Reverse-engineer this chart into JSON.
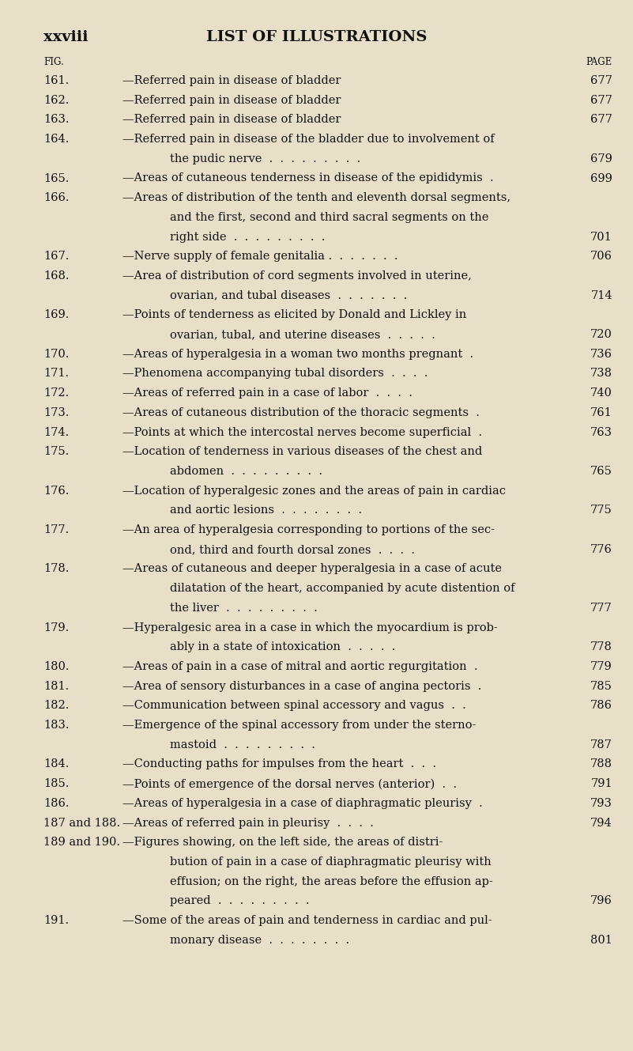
{
  "background_color": "#e8dfc8",
  "page_width": 8.01,
  "page_height": 13.29,
  "header_left": "xxviii",
  "header_center": "LIST OF ILLUSTRATIONS",
  "col_fig_label": "FIG.",
  "col_page_label": "PAGE",
  "entries": [
    {
      "fig": "161.",
      "text": "—Referred pain in disease of bladder",
      "trail": " .  .  .  .  . ",
      "page": "677",
      "indent": false
    },
    {
      "fig": "162.",
      "text": "—Referred pain in disease of bladder",
      "trail": " .  .  .  .  . ",
      "page": "677",
      "indent": false
    },
    {
      "fig": "163.",
      "text": "—Referred pain in disease of bladder",
      "trail": " .  .  .  .  . ",
      "page": "677",
      "indent": false
    },
    {
      "fig": "164.",
      "text": "—Referred pain in disease of the bladder due to involvement of",
      "trail": null,
      "page": null,
      "indent": false
    },
    {
      "fig": "",
      "text": "the pudic nerve  .  .  .  .  .  .  .  .  . ",
      "trail": null,
      "page": "679",
      "indent": true
    },
    {
      "fig": "165.",
      "text": "—Areas of cutaneous tenderness in disease of the epididymis  . ",
      "trail": null,
      "page": "699",
      "indent": false
    },
    {
      "fig": "166.",
      "text": "—Areas of distribution of the tenth and eleventh dorsal segments,",
      "trail": null,
      "page": null,
      "indent": false
    },
    {
      "fig": "",
      "text": "and the first, second and third sacral segments on the",
      "trail": null,
      "page": null,
      "indent": true
    },
    {
      "fig": "",
      "text": "right side  .  .  .  .  .  .  .  .  . ",
      "trail": null,
      "page": "701",
      "indent": true
    },
    {
      "fig": "167.",
      "text": "—Nerve supply of female genitalia .  .  .  .  .  .  . ",
      "trail": null,
      "page": "706",
      "indent": false
    },
    {
      "fig": "168.",
      "text": "—Area of distribution of cord segments involved in uterine,",
      "trail": null,
      "page": null,
      "indent": false
    },
    {
      "fig": "",
      "text": "ovarian, and tubal diseases  .  .  .  .  .  .  . ",
      "trail": null,
      "page": "714",
      "indent": true
    },
    {
      "fig": "169.",
      "text": "—Points of tenderness as elicited by Donald and Lickley in",
      "trail": null,
      "page": null,
      "indent": false
    },
    {
      "fig": "",
      "text": "ovarian, tubal, and uterine diseases  .  .  .  .  . ",
      "trail": null,
      "page": "720",
      "indent": true
    },
    {
      "fig": "170.",
      "text": "—Areas of hyperalgesia in a woman two months pregnant  . ",
      "trail": null,
      "page": "736",
      "indent": false
    },
    {
      "fig": "171.",
      "text": "—Phenomena accompanying tubal disorders  .  .  .  . ",
      "trail": null,
      "page": "738",
      "indent": false
    },
    {
      "fig": "172.",
      "text": "—Areas of referred pain in a case of labor  .  .  .  . ",
      "trail": null,
      "page": "740",
      "indent": false
    },
    {
      "fig": "173.",
      "text": "—Areas of cutaneous distribution of the thoracic segments  . ",
      "trail": null,
      "page": "761",
      "indent": false
    },
    {
      "fig": "174.",
      "text": "—Points at which the intercostal nerves become superficial  . ",
      "trail": null,
      "page": "763",
      "indent": false
    },
    {
      "fig": "175.",
      "text": "—Location of tenderness in various diseases of the chest and",
      "trail": null,
      "page": null,
      "indent": false
    },
    {
      "fig": "",
      "text": "abdomen  .  .  .  .  .  .  .  .  . ",
      "trail": null,
      "page": "765",
      "indent": true
    },
    {
      "fig": "176.",
      "text": "—Location of hyperalgesic zones and the areas of pain in cardiac",
      "trail": null,
      "page": null,
      "indent": false
    },
    {
      "fig": "",
      "text": "and aortic lesions  .  .  .  .  .  .  .  . ",
      "trail": null,
      "page": "775",
      "indent": true
    },
    {
      "fig": "177.",
      "text": "—An area of hyperalgesia corresponding to portions of the sec-",
      "trail": null,
      "page": null,
      "indent": false
    },
    {
      "fig": "",
      "text": "ond, third and fourth dorsal zones  .  .  .  . ",
      "trail": null,
      "page": "776",
      "indent": true
    },
    {
      "fig": "178.",
      "text": "—Areas of cutaneous and deeper hyperalgesia in a case of acute",
      "trail": null,
      "page": null,
      "indent": false
    },
    {
      "fig": "",
      "text": "dilatation of the heart, accompanied by acute distention of",
      "trail": null,
      "page": null,
      "indent": true
    },
    {
      "fig": "",
      "text": "the liver  .  .  .  .  .  .  .  .  . ",
      "trail": null,
      "page": "777",
      "indent": true
    },
    {
      "fig": "179.",
      "text": "—Hyperalgesic area in a case in which the myocardium is prob-",
      "trail": null,
      "page": null,
      "indent": false
    },
    {
      "fig": "",
      "text": "ably in a state of intoxication  .  .  .  .  . ",
      "trail": null,
      "page": "778",
      "indent": true
    },
    {
      "fig": "180.",
      "text": "—Areas of pain in a case of mitral and aortic regurgitation  . ",
      "trail": null,
      "page": "779",
      "indent": false
    },
    {
      "fig": "181.",
      "text": "—Area of sensory disturbances in a case of angina pectoris  . ",
      "trail": null,
      "page": "785",
      "indent": false
    },
    {
      "fig": "182.",
      "text": "—Communication between spinal accessory and vagus  .  . ",
      "trail": null,
      "page": "786",
      "indent": false
    },
    {
      "fig": "183.",
      "text": "—Emergence of the spinal accessory from under the sterno-",
      "trail": null,
      "page": null,
      "indent": false
    },
    {
      "fig": "",
      "text": "mastoid  .  .  .  .  .  .  .  .  . ",
      "trail": null,
      "page": "787",
      "indent": true
    },
    {
      "fig": "184.",
      "text": "—Conducting paths for impulses from the heart  .  .  . ",
      "trail": null,
      "page": "788",
      "indent": false
    },
    {
      "fig": "185.",
      "text": "—Points of emergence of the dorsal nerves (anterior)  .  . ",
      "trail": null,
      "page": "791",
      "indent": false
    },
    {
      "fig": "186.",
      "text": "—Areas of hyperalgesia in a case of diaphragmatic pleurisy  . ",
      "trail": null,
      "page": "793",
      "indent": false
    },
    {
      "fig": "187 and 188.",
      "text": "—Areas of referred pain in pleurisy  .  .  .  . ",
      "trail": null,
      "page": "794",
      "indent": false
    },
    {
      "fig": "189 and 190.",
      "text": "—Figures showing, on the left side, the areas of distri-",
      "trail": null,
      "page": null,
      "indent": false
    },
    {
      "fig": "",
      "text": "bution of pain in a case of diaphragmatic pleurisy with",
      "trail": null,
      "page": null,
      "indent": true
    },
    {
      "fig": "",
      "text": "effusion; on the right, the areas before the effusion ap-",
      "trail": null,
      "page": null,
      "indent": true
    },
    {
      "fig": "",
      "text": "peared  .  .  .  .  .  .  .  .  . ",
      "trail": null,
      "page": "796",
      "indent": true
    },
    {
      "fig": "191.",
      "text": "—Some of the areas of pain and tenderness in cardiac and pul-",
      "trail": null,
      "page": null,
      "indent": false
    },
    {
      "fig": "",
      "text": "monary disease  .  .  .  .  .  .  .  . ",
      "trail": null,
      "page": "801",
      "indent": true
    }
  ]
}
